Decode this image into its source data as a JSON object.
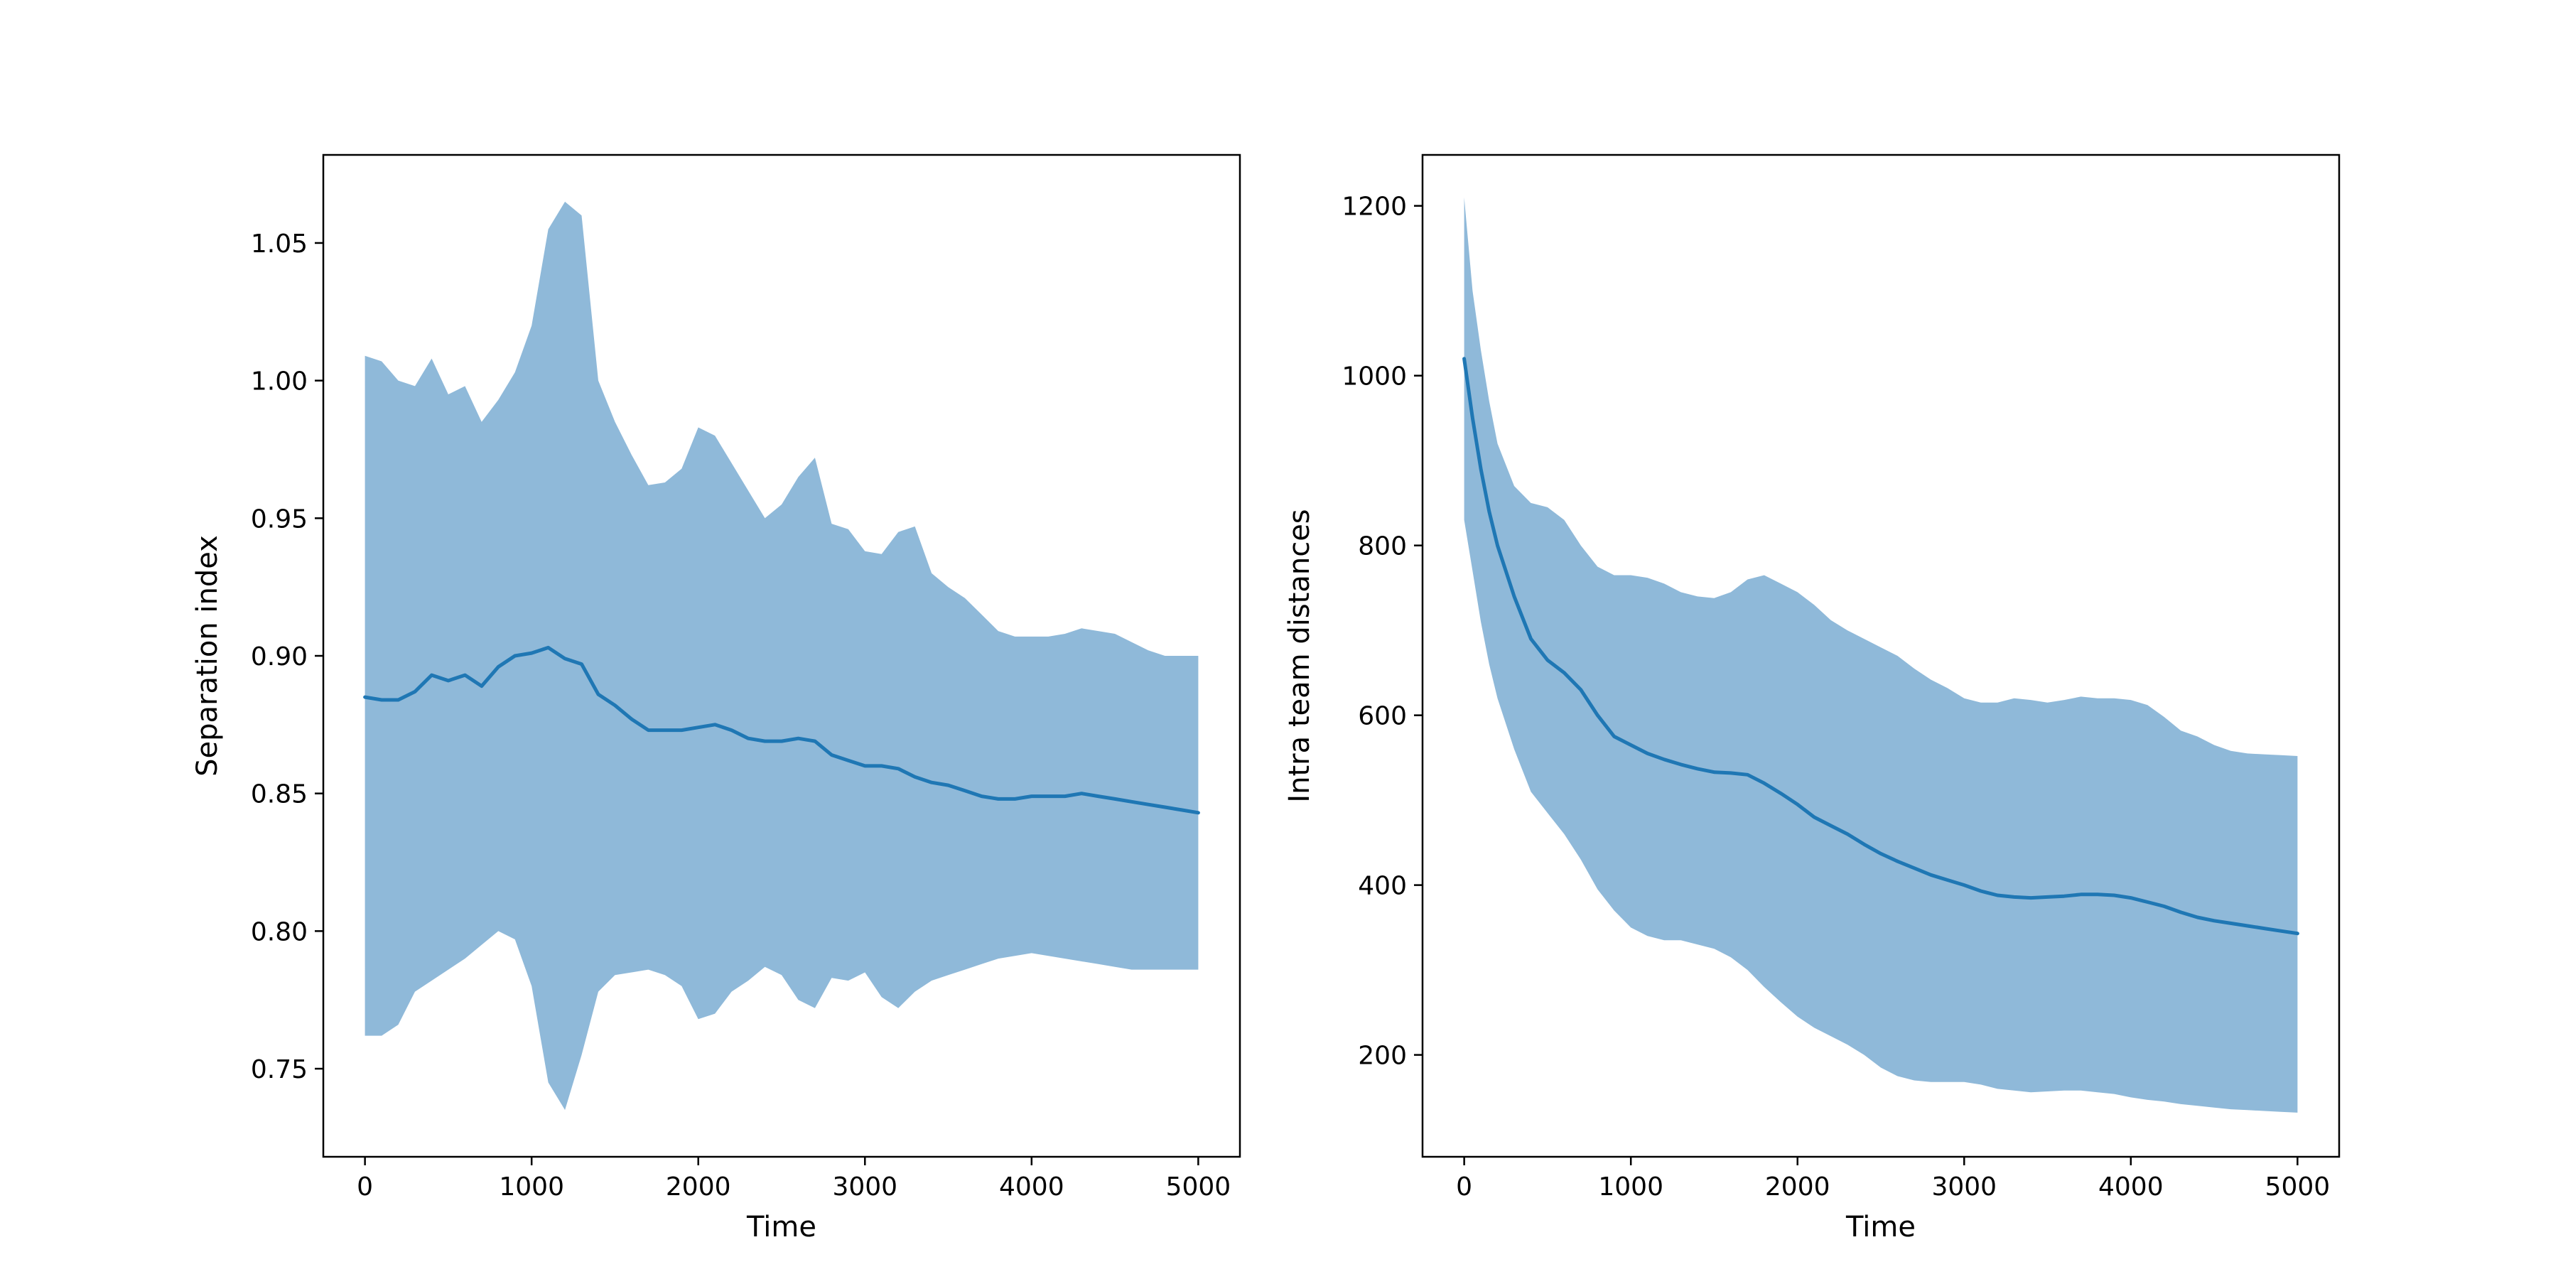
{
  "chart_data": [
    {
      "type": "line",
      "xlabel": "Time",
      "ylabel": "Separation index",
      "xlim": [
        -250,
        5250
      ],
      "ylim": [
        0.718,
        1.082
      ],
      "xticks": [
        0,
        1000,
        2000,
        3000,
        4000,
        5000
      ],
      "xtick_labels": [
        "0",
        "1000",
        "2000",
        "3000",
        "4000",
        "5000"
      ],
      "yticks": [
        0.75,
        0.8,
        0.85,
        0.9,
        0.95,
        1.0,
        1.05
      ],
      "ytick_labels": [
        "0.75",
        "0.80",
        "0.85",
        "0.90",
        "0.95",
        "1.00",
        "1.05"
      ],
      "grid": false,
      "line_color": "#1f77b4",
      "band_color": "#8fb9d9",
      "series": [
        {
          "x": [
            0,
            100,
            200,
            300,
            400,
            500,
            600,
            700,
            800,
            900,
            1000,
            1100,
            1200,
            1300,
            1400,
            1500,
            1600,
            1700,
            1800,
            1900,
            2000,
            2100,
            2200,
            2300,
            2400,
            2500,
            2600,
            2700,
            2800,
            2900,
            3000,
            3100,
            3200,
            3300,
            3400,
            3500,
            3600,
            3700,
            3800,
            3900,
            4000,
            4100,
            4200,
            4300,
            4400,
            4500,
            4600,
            4700,
            4800,
            4900,
            5000
          ],
          "mean": [
            0.885,
            0.884,
            0.884,
            0.887,
            0.893,
            0.891,
            0.893,
            0.889,
            0.896,
            0.9,
            0.901,
            0.903,
            0.899,
            0.897,
            0.886,
            0.882,
            0.877,
            0.873,
            0.873,
            0.873,
            0.874,
            0.875,
            0.873,
            0.87,
            0.869,
            0.869,
            0.87,
            0.869,
            0.864,
            0.862,
            0.86,
            0.86,
            0.859,
            0.856,
            0.854,
            0.853,
            0.851,
            0.849,
            0.848,
            0.848,
            0.849,
            0.849,
            0.849,
            0.85,
            0.849,
            0.848,
            0.847,
            0.846,
            0.845,
            0.844,
            0.843
          ],
          "upper": [
            1.009,
            1.007,
            1.0,
            0.998,
            1.008,
            0.995,
            0.998,
            0.985,
            0.993,
            1.003,
            1.02,
            1.055,
            1.065,
            1.06,
            1.0,
            0.985,
            0.973,
            0.962,
            0.963,
            0.968,
            0.983,
            0.98,
            0.97,
            0.96,
            0.95,
            0.955,
            0.965,
            0.972,
            0.948,
            0.946,
            0.938,
            0.937,
            0.945,
            0.947,
            0.93,
            0.925,
            0.921,
            0.915,
            0.909,
            0.907,
            0.907,
            0.907,
            0.908,
            0.91,
            0.909,
            0.908,
            0.905,
            0.902,
            0.9,
            0.9,
            0.9
          ],
          "lower": [
            0.762,
            0.762,
            0.766,
            0.778,
            0.782,
            0.786,
            0.79,
            0.795,
            0.8,
            0.797,
            0.78,
            0.745,
            0.735,
            0.755,
            0.778,
            0.784,
            0.785,
            0.786,
            0.784,
            0.78,
            0.768,
            0.77,
            0.778,
            0.782,
            0.787,
            0.784,
            0.775,
            0.772,
            0.783,
            0.782,
            0.785,
            0.776,
            0.772,
            0.778,
            0.782,
            0.784,
            0.786,
            0.788,
            0.79,
            0.791,
            0.792,
            0.791,
            0.79,
            0.789,
            0.788,
            0.787,
            0.786,
            0.786,
            0.786,
            0.786,
            0.786
          ]
        }
      ]
    },
    {
      "type": "line",
      "xlabel": "Time",
      "ylabel": "Intra team distances",
      "xlim": [
        -250,
        5250
      ],
      "ylim": [
        80,
        1260
      ],
      "xticks": [
        0,
        1000,
        2000,
        3000,
        4000,
        5000
      ],
      "xtick_labels": [
        "0",
        "1000",
        "2000",
        "3000",
        "4000",
        "5000"
      ],
      "yticks": [
        200,
        400,
        600,
        800,
        1000,
        1200
      ],
      "ytick_labels": [
        "200",
        "400",
        "600",
        "800",
        "1000",
        "1200"
      ],
      "grid": false,
      "line_color": "#1f77b4",
      "band_color": "#8fb9d9",
      "series": [
        {
          "x": [
            0,
            50,
            100,
            150,
            200,
            300,
            400,
            500,
            600,
            700,
            800,
            900,
            1000,
            1100,
            1200,
            1300,
            1400,
            1500,
            1600,
            1700,
            1800,
            1900,
            2000,
            2100,
            2200,
            2300,
            2400,
            2500,
            2600,
            2700,
            2800,
            2900,
            3000,
            3100,
            3200,
            3300,
            3400,
            3500,
            3600,
            3700,
            3800,
            3900,
            4000,
            4100,
            4200,
            4300,
            4400,
            4500,
            4600,
            4700,
            4800,
            4900,
            5000
          ],
          "mean": [
            1020,
            950,
            890,
            840,
            800,
            740,
            690,
            665,
            650,
            630,
            600,
            575,
            565,
            555,
            548,
            542,
            537,
            533,
            532,
            530,
            520,
            508,
            495,
            480,
            470,
            460,
            448,
            437,
            428,
            420,
            412,
            406,
            400,
            393,
            388,
            386,
            385,
            386,
            387,
            389,
            389,
            388,
            385,
            380,
            375,
            368,
            362,
            358,
            355,
            352,
            349,
            346,
            343
          ],
          "upper": [
            1210,
            1100,
            1030,
            970,
            920,
            870,
            850,
            845,
            830,
            800,
            775,
            765,
            765,
            762,
            755,
            745,
            740,
            738,
            745,
            760,
            765,
            755,
            745,
            730,
            712,
            700,
            690,
            680,
            670,
            655,
            642,
            632,
            620,
            615,
            615,
            620,
            618,
            615,
            618,
            622,
            620,
            620,
            618,
            612,
            598,
            582,
            575,
            565,
            558,
            555,
            554,
            553,
            552
          ],
          "lower": [
            830,
            770,
            710,
            660,
            620,
            560,
            510,
            485,
            460,
            430,
            395,
            370,
            350,
            340,
            335,
            335,
            330,
            325,
            315,
            300,
            280,
            262,
            245,
            232,
            222,
            212,
            200,
            185,
            175,
            170,
            168,
            168,
            168,
            165,
            160,
            158,
            156,
            157,
            158,
            158,
            156,
            154,
            150,
            147,
            145,
            142,
            140,
            138,
            136,
            135,
            134,
            133,
            132
          ]
        }
      ]
    }
  ]
}
